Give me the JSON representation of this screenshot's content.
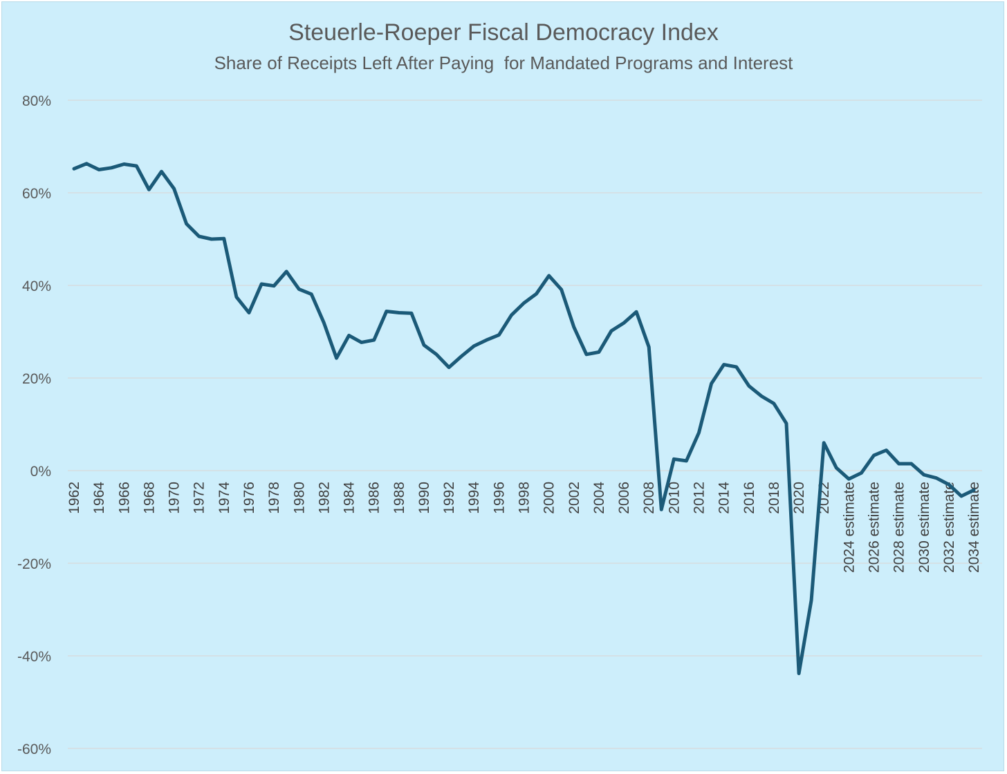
{
  "chart_data": {
    "type": "line",
    "title": "Steuerle-Roeper Fiscal Democracy Index",
    "subtitle": "Share of Receipts Left After Paying  for Mandated Programs and Interest",
    "xlabel": "",
    "ylabel": "",
    "ylim": [
      -60,
      80
    ],
    "yticks": [
      80,
      60,
      40,
      20,
      0,
      -20,
      -40,
      -60
    ],
    "ytick_labels": [
      "80%",
      "60%",
      "40%",
      "20%",
      "0%",
      "-20%",
      "-40%",
      "-60%"
    ],
    "grid": true,
    "legend": "none",
    "line_color": "#1b5a78",
    "x": [
      "1962",
      "1963",
      "1964",
      "1965",
      "1966",
      "1967",
      "1968",
      "1969",
      "1970",
      "1971",
      "1972",
      "1973",
      "1974",
      "1975",
      "1976",
      "1977",
      "1978",
      "1979",
      "1980",
      "1981",
      "1982",
      "1983",
      "1984",
      "1985",
      "1986",
      "1987",
      "1988",
      "1989",
      "1990",
      "1991",
      "1992",
      "1993",
      "1994",
      "1995",
      "1996",
      "1997",
      "1998",
      "1999",
      "2000",
      "2001",
      "2002",
      "2003",
      "2004",
      "2005",
      "2006",
      "2007",
      "2008",
      "2009",
      "2010",
      "2011",
      "2012",
      "2013",
      "2014",
      "2015",
      "2016",
      "2017",
      "2018",
      "2019",
      "2020",
      "2021",
      "2022",
      "2023",
      "2024 estimate",
      "2025",
      "2026 estimate",
      "2027",
      "2028 estimate",
      "2029",
      "2030 estimate",
      "2031",
      "2032 estimate",
      "2033",
      "2034 estimate"
    ],
    "x_tick_labels": [
      "1962",
      "1964",
      "1966",
      "1968",
      "1970",
      "1972",
      "1974",
      "1976",
      "1978",
      "1980",
      "1982",
      "1984",
      "1986",
      "1988",
      "1990",
      "1992",
      "1994",
      "1996",
      "1998",
      "2000",
      "2002",
      "2004",
      "2006",
      "2008",
      "2010",
      "2012",
      "2014",
      "2016",
      "2018",
      "2020",
      "2022",
      "2024 estimate",
      "2026 estimate",
      "2028 estimate",
      "2030 estimate",
      "2032 estimate",
      "2034 estimate"
    ],
    "series": [
      {
        "name": "",
        "values": [
          65.2,
          66.3,
          65.0,
          65.4,
          66.2,
          65.8,
          60.7,
          64.6,
          60.9,
          53.3,
          50.6,
          50.0,
          50.1,
          37.5,
          34.1,
          40.3,
          39.9,
          43.0,
          39.2,
          38.1,
          31.9,
          24.3,
          29.2,
          27.7,
          28.2,
          34.4,
          34.1,
          34.0,
          27.1,
          25.1,
          22.3,
          24.7,
          26.9,
          28.2,
          29.3,
          33.6,
          36.2,
          38.2,
          42.1,
          39.1,
          31.0,
          25.1,
          25.6,
          30.2,
          31.9,
          34.3,
          26.7,
          -8.4,
          2.5,
          2.1,
          8.2,
          18.8,
          22.9,
          22.4,
          18.3,
          16.1,
          14.5,
          10.2,
          -43.8,
          -28.0,
          6.0,
          0.6,
          -1.8,
          -0.5,
          3.3,
          4.4,
          1.5,
          1.5,
          -0.9,
          -1.6,
          -3.0,
          -5.5,
          -4.2
        ]
      }
    ]
  }
}
